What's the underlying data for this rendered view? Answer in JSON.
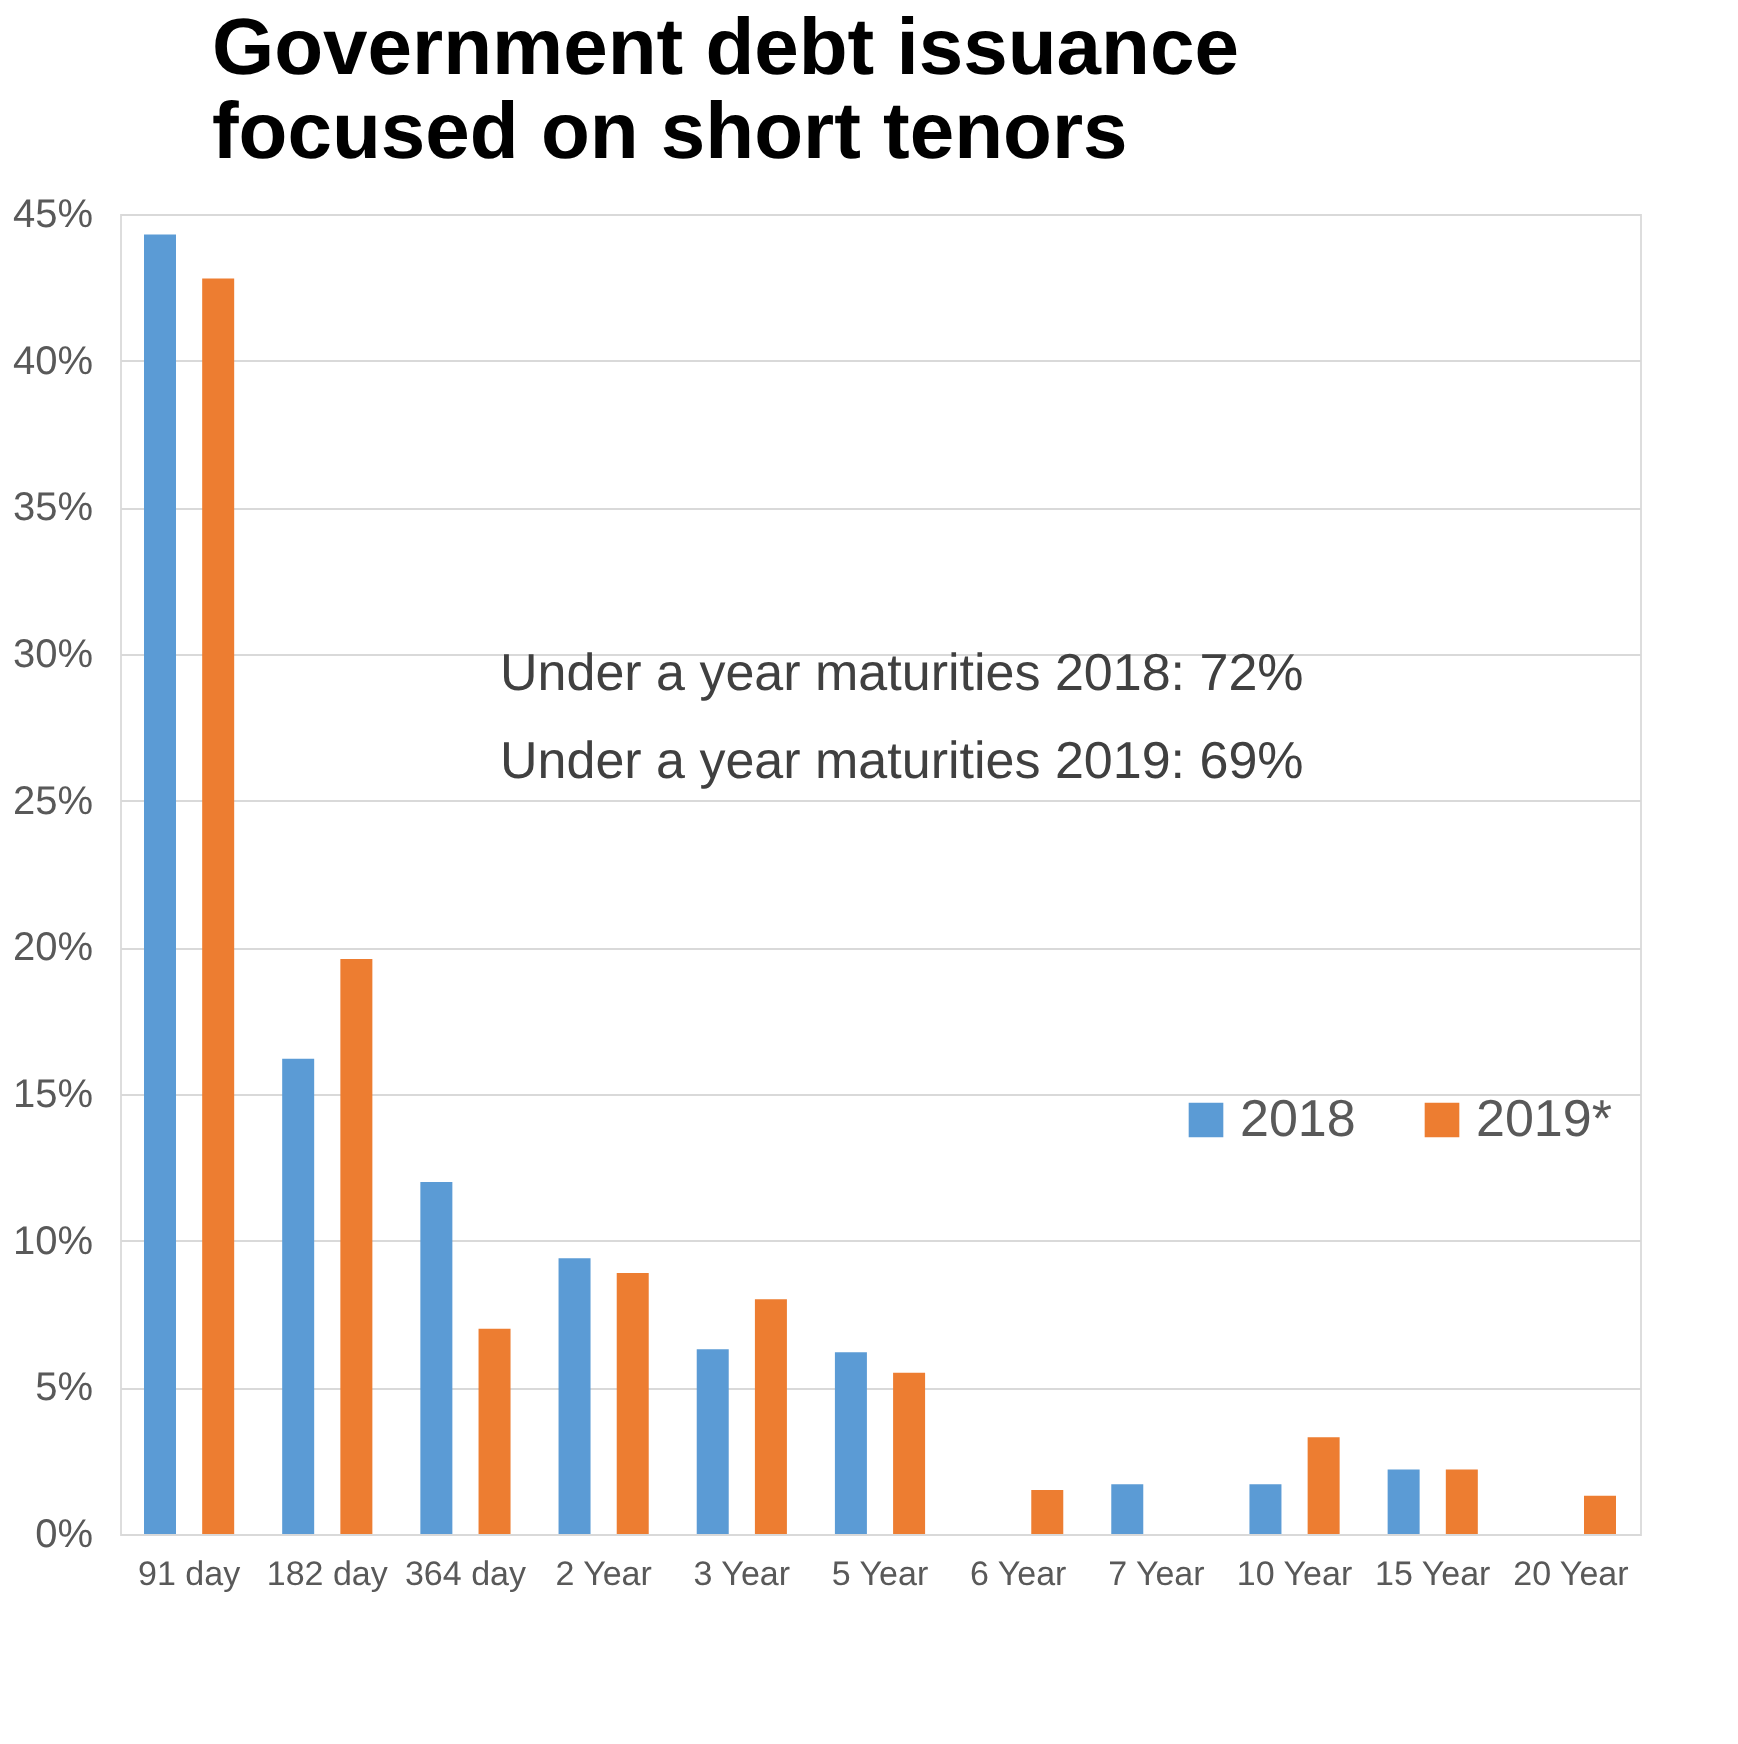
{
  "chart_data": {
    "type": "bar",
    "title": "Government debt issuance focused on short tenors",
    "categories": [
      "91 day",
      "182 day",
      "364 day",
      "2 Year",
      "3 Year",
      "5 Year",
      "6 Year",
      "7 Year",
      "10 Year",
      "15 Year",
      "20 Year"
    ],
    "series": [
      {
        "name": "2018",
        "color": "#5b9bd5",
        "values": [
          44.3,
          16.2,
          12.0,
          9.4,
          6.3,
          6.2,
          null,
          1.7,
          1.7,
          2.2,
          null
        ]
      },
      {
        "name": "2019*",
        "color": "#ed7d31",
        "values": [
          42.8,
          19.6,
          7.0,
          8.9,
          8.0,
          5.5,
          1.5,
          null,
          3.3,
          2.2,
          1.3
        ]
      }
    ],
    "ylim": [
      0,
      45
    ],
    "yticks": [
      {
        "value": 0,
        "label": "0%"
      },
      {
        "value": 5,
        "label": "5%"
      },
      {
        "value": 10,
        "label": "10%"
      },
      {
        "value": 15,
        "label": "15%"
      },
      {
        "value": 20,
        "label": "20%"
      },
      {
        "value": 25,
        "label": "25%"
      },
      {
        "value": 30,
        "label": "30%"
      },
      {
        "value": 35,
        "label": "35%"
      },
      {
        "value": 40,
        "label": "40%"
      },
      {
        "value": 45,
        "label": "45%"
      }
    ],
    "annotations": [
      "Under a year maturities 2018: 72%",
      "Under a year maturities 2019: 69%"
    ],
    "grid": "y",
    "legend": "right"
  }
}
